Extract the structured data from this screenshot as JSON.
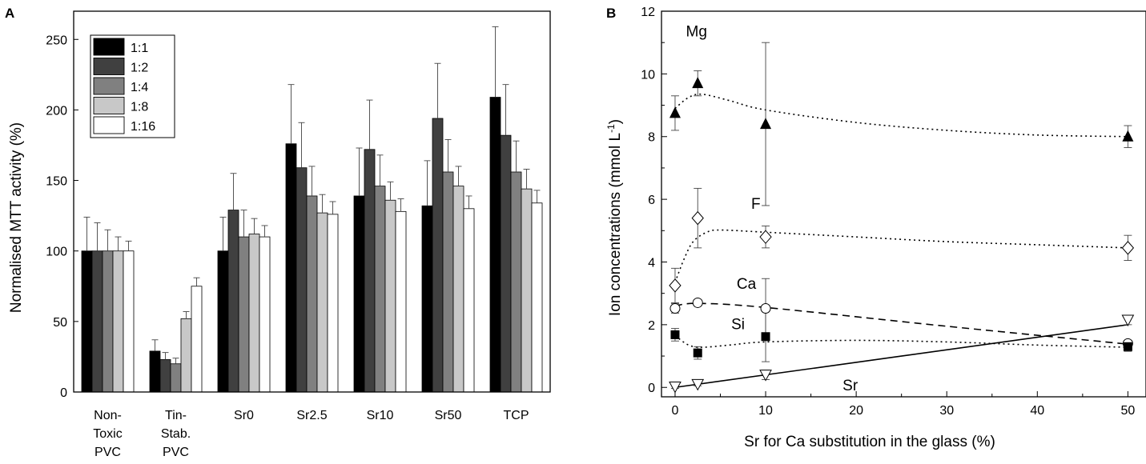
{
  "chart_data": [
    {
      "panel_label": "A",
      "type": "bar",
      "ylabel": "Normalised MTT activity (%)",
      "xlabel": "",
      "ylim": [
        0,
        270
      ],
      "yticks": [
        0,
        50,
        100,
        150,
        200,
        250
      ],
      "categories": [
        [
          "Non-",
          "Toxic",
          "PVC"
        ],
        [
          "Tin-",
          "Stab.",
          "PVC"
        ],
        [
          "Sr0"
        ],
        [
          "Sr2.5"
        ],
        [
          "Sr10"
        ],
        [
          "Sr50"
        ],
        [
          "TCP"
        ]
      ],
      "legend_position": "top-left",
      "series": [
        {
          "name": "1:1",
          "color": "#000000",
          "values": [
            100,
            29,
            100,
            176,
            139,
            132,
            209
          ],
          "errors": [
            24,
            8,
            24,
            42,
            34,
            32,
            50
          ]
        },
        {
          "name": "1:2",
          "color": "#404040",
          "values": [
            100,
            23,
            129,
            159,
            172,
            194,
            182
          ],
          "errors": [
            20,
            5,
            26,
            32,
            35,
            39,
            36
          ]
        },
        {
          "name": "1:4",
          "color": "#808080",
          "values": [
            100,
            20,
            110,
            139,
            146,
            156,
            156
          ],
          "errors": [
            15,
            4,
            19,
            21,
            22,
            23,
            22
          ]
        },
        {
          "name": "1:8",
          "color": "#c8c8c8",
          "values": [
            100,
            52,
            112,
            127,
            136,
            146,
            144
          ],
          "errors": [
            10,
            5,
            11,
            13,
            13,
            14,
            14
          ]
        },
        {
          "name": "1:16",
          "color": "#ffffff",
          "values": [
            100,
            75,
            110,
            126,
            128,
            130,
            134
          ],
          "errors": [
            7,
            6,
            8,
            9,
            9,
            9,
            9
          ]
        }
      ]
    },
    {
      "panel_label": "B",
      "type": "scatter",
      "xlabel": "Sr for Ca substitution in the glass (%)",
      "ylabel_main": "Ion concentrations (mmol L",
      "ylabel_sup": "-1",
      "ylabel_end": ")",
      "xlim": [
        -1.5,
        52
      ],
      "ylim": [
        -0.3,
        12
      ],
      "xticks": [
        0,
        10,
        20,
        30,
        40,
        50
      ],
      "yticks": [
        0,
        2,
        4,
        6,
        8,
        10,
        12
      ],
      "series": [
        {
          "name": "Mg",
          "marker": "filled-triangle-up",
          "line": "dotted",
          "x": [
            0,
            2.5,
            10,
            50
          ],
          "y": [
            8.75,
            9.7,
            8.4,
            8.0
          ],
          "errors": [
            0.55,
            0.4,
            2.6,
            0.35
          ],
          "fit": [
            [
              0,
              8.9
            ],
            [
              1.5,
              9.25
            ],
            [
              3,
              9.35
            ],
            [
              6,
              9.15
            ],
            [
              10,
              8.85
            ],
            [
              20,
              8.45
            ],
            [
              30,
              8.2
            ],
            [
              40,
              8.05
            ],
            [
              50,
              8.0
            ]
          ]
        },
        {
          "name": "F",
          "marker": "open-diamond",
          "line": "dotted",
          "x": [
            0,
            2.5,
            10,
            50
          ],
          "y": [
            3.25,
            5.4,
            4.8,
            4.45
          ],
          "errors": [
            0.55,
            0.95,
            0.35,
            0.4
          ],
          "fit": [
            [
              0,
              3.35
            ],
            [
              1,
              4.1
            ],
            [
              2,
              4.65
            ],
            [
              3.5,
              4.95
            ],
            [
              5,
              5.02
            ],
            [
              10,
              4.95
            ],
            [
              20,
              4.8
            ],
            [
              30,
              4.65
            ],
            [
              40,
              4.55
            ],
            [
              50,
              4.45
            ]
          ]
        },
        {
          "name": "Ca",
          "marker": "open-circle",
          "line": "dashed",
          "x": [
            0,
            2.5,
            10,
            50
          ],
          "y": [
            2.52,
            2.7,
            2.52,
            1.4
          ],
          "errors": [
            0.15,
            0.1,
            0.95,
            0.1
          ],
          "fit": [
            [
              0,
              2.6
            ],
            [
              2.5,
              2.68
            ],
            [
              10,
              2.55
            ],
            [
              30,
              1.95
            ],
            [
              50,
              1.38
            ]
          ]
        },
        {
          "name": "Si",
          "marker": "filled-square",
          "line": "dotted",
          "x": [
            0,
            2.5,
            10,
            50
          ],
          "y": [
            1.68,
            1.1,
            1.62,
            1.3
          ],
          "errors": [
            0.2,
            0.2,
            0.8,
            0.15
          ],
          "fit": [
            [
              0,
              1.65
            ],
            [
              1.5,
              1.35
            ],
            [
              3,
              1.28
            ],
            [
              6,
              1.35
            ],
            [
              10,
              1.45
            ],
            [
              20,
              1.5
            ],
            [
              30,
              1.45
            ],
            [
              40,
              1.35
            ],
            [
              50,
              1.28
            ]
          ]
        },
        {
          "name": "Sr",
          "marker": "open-triangle-down",
          "line": "solid",
          "x": [
            0,
            2.5,
            10,
            50
          ],
          "y": [
            0.02,
            0.1,
            0.4,
            2.15
          ],
          "errors": [
            0.05,
            0.05,
            0.15,
            0.15
          ],
          "fit": [
            [
              0,
              0.0
            ],
            [
              50,
              2.0
            ]
          ]
        }
      ],
      "annotations": [
        {
          "text": "Mg",
          "x": 1.2,
          "y": 11.2
        },
        {
          "text": "F",
          "x": 8.4,
          "y": 5.7
        },
        {
          "text": "Ca",
          "x": 6.8,
          "y": 3.15
        },
        {
          "text": "Si",
          "x": 6.2,
          "y": 1.85
        },
        {
          "text": "Sr",
          "x": 18.5,
          "y": -0.1
        }
      ]
    }
  ]
}
